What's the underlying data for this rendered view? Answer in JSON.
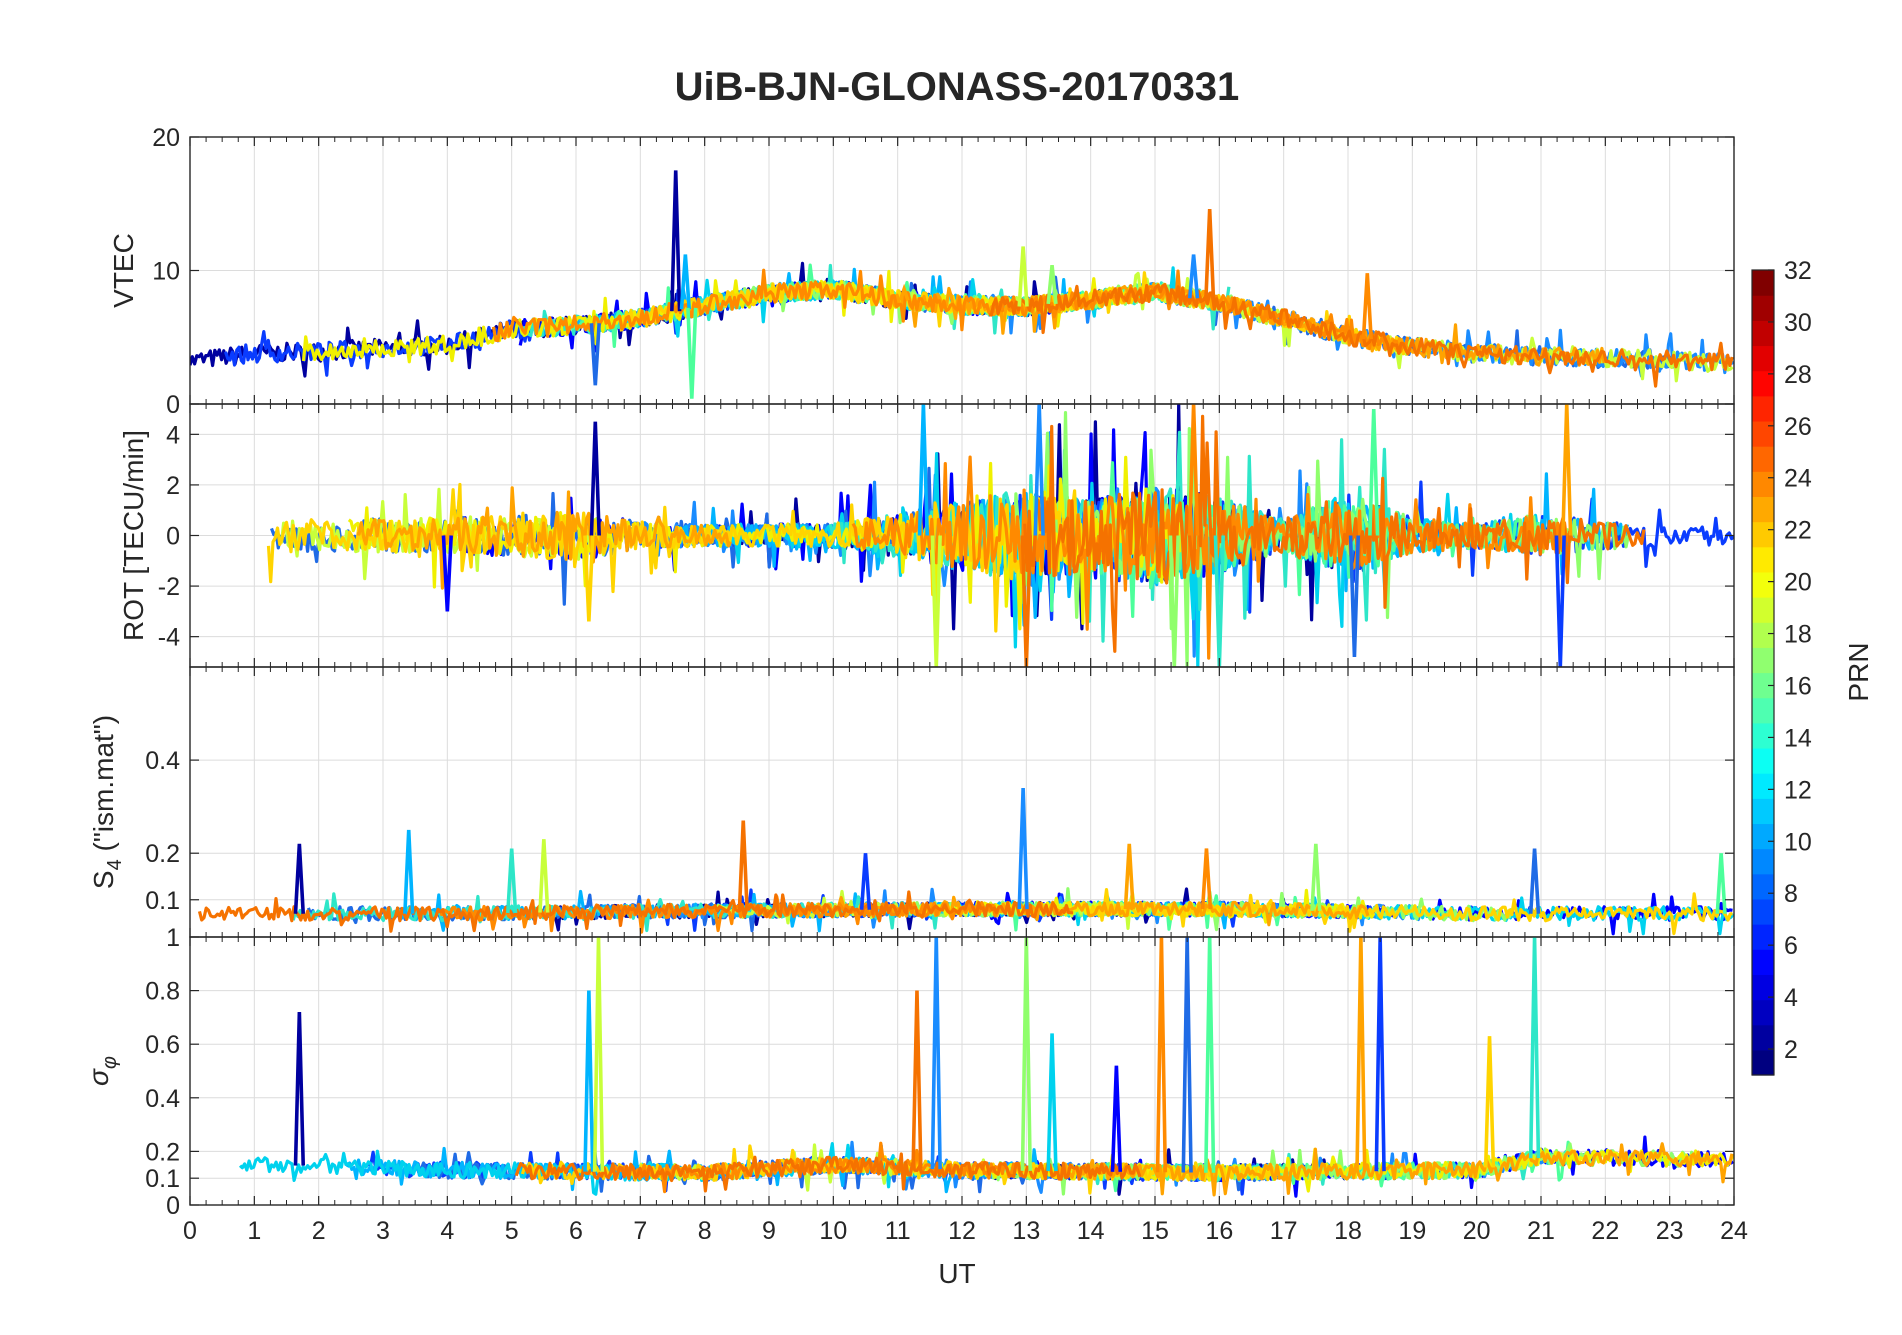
{
  "chart_data": {
    "type": "line",
    "title": "UiB-BJN-GLONASS-20170331",
    "xlabel": "UT",
    "xlim": [
      0,
      24
    ],
    "x_ticks": [
      "0",
      "1",
      "2",
      "3",
      "4",
      "5",
      "6",
      "7",
      "8",
      "9",
      "10",
      "11",
      "12",
      "13",
      "14",
      "15",
      "16",
      "17",
      "18",
      "19",
      "20",
      "21",
      "22",
      "23",
      "24"
    ],
    "grid": true,
    "series_count": 24,
    "panels": [
      {
        "id": "vtec",
        "ylabel": "VTEC",
        "ylim": [
          0,
          20
        ],
        "y_ticks": [
          "0",
          "10",
          "20"
        ],
        "baseline": [
          [
            0,
            3.2
          ],
          [
            1,
            3.8
          ],
          [
            2,
            3.9
          ],
          [
            3,
            4.2
          ],
          [
            4,
            4.4
          ],
          [
            5,
            5.6
          ],
          [
            6,
            5.9
          ],
          [
            7,
            6.4
          ],
          [
            8,
            7.4
          ],
          [
            9,
            8.3
          ],
          [
            10,
            8.6
          ],
          [
            11,
            7.8
          ],
          [
            12,
            7.4
          ],
          [
            13,
            7.3
          ],
          [
            14,
            7.8
          ],
          [
            15,
            8.4
          ],
          [
            16,
            7.6
          ],
          [
            17,
            6.4
          ],
          [
            18,
            5.1
          ],
          [
            19,
            4.3
          ],
          [
            20,
            3.8
          ],
          [
            21,
            3.6
          ],
          [
            22,
            3.5
          ],
          [
            23,
            3.3
          ],
          [
            24,
            3.0
          ]
        ],
        "spread": 1.4,
        "spikes": [
          [
            7.55,
            17.5
          ],
          [
            7.7,
            11.2
          ],
          [
            12.95,
            11.8
          ],
          [
            15.85,
            14.6
          ],
          [
            15.6,
            11.2
          ],
          [
            13.4,
            10.4
          ],
          [
            18.3,
            9.8
          ],
          [
            6.3,
            1.4
          ],
          [
            7.8,
            0.4
          ],
          [
            11.1,
            8.6
          ]
        ]
      },
      {
        "id": "rot",
        "ylabel": "ROT [TECU/min]",
        "ylim": [
          -5.2,
          5.2
        ],
        "y_ticks": [
          "-4",
          "-2",
          "0",
          "2",
          "4"
        ],
        "baseline": [
          [
            0,
            0
          ],
          [
            24,
            0
          ]
        ],
        "activity": [
          [
            0,
            0.9
          ],
          [
            2,
            0.9
          ],
          [
            4,
            1.0
          ],
          [
            6,
            1.4
          ],
          [
            7,
            0.8
          ],
          [
            8,
            0.6
          ],
          [
            10,
            0.7
          ],
          [
            11,
            1.2
          ],
          [
            12,
            2.0
          ],
          [
            13,
            2.6
          ],
          [
            14,
            2.0
          ],
          [
            15,
            2.8
          ],
          [
            16,
            2.2
          ],
          [
            17,
            0.9
          ],
          [
            18,
            2.4
          ],
          [
            19,
            1.0
          ],
          [
            20,
            0.7
          ],
          [
            21,
            1.2
          ],
          [
            22,
            0.8
          ],
          [
            23,
            0.6
          ],
          [
            24,
            0.5
          ]
        ],
        "spikes": [
          [
            6.3,
            4.5
          ],
          [
            11.4,
            5.2
          ],
          [
            11.6,
            -5.2
          ],
          [
            13.0,
            -5.2
          ],
          [
            13.2,
            5.2
          ],
          [
            15.3,
            -5.2
          ],
          [
            15.6,
            5.2
          ],
          [
            18.1,
            -4.8
          ],
          [
            18.4,
            5.0
          ],
          [
            21.4,
            5.2
          ],
          [
            21.3,
            -5.2
          ],
          [
            16.0,
            -5.2
          ],
          [
            6.2,
            -3.4
          ],
          [
            4.0,
            -3.0
          ]
        ]
      },
      {
        "id": "s4",
        "ylabel": "S4 (\"ism.mat\")",
        "ylabel_main": "S",
        "ylabel_sub": "4",
        "ylabel_rest": " (\"ism.mat\")",
        "ylim": [
          0.02,
          0.6
        ],
        "y_ticks": [
          "0.1",
          "0.2",
          "0.4"
        ],
        "y_tick_values": [
          0.1,
          0.2,
          0.4
        ],
        "baseline": [
          [
            0,
            0.07
          ],
          [
            4,
            0.07
          ],
          [
            7,
            0.075
          ],
          [
            12,
            0.08
          ],
          [
            16,
            0.08
          ],
          [
            20,
            0.07
          ],
          [
            24,
            0.07
          ]
        ],
        "spread": 0.03,
        "spikes": [
          [
            1.7,
            0.22
          ],
          [
            3.4,
            0.25
          ],
          [
            5.5,
            0.23
          ],
          [
            8.6,
            0.27
          ],
          [
            12.95,
            0.34
          ],
          [
            17.5,
            0.22
          ],
          [
            15.8,
            0.21
          ],
          [
            20.9,
            0.21
          ],
          [
            23.8,
            0.2
          ],
          [
            14.6,
            0.22
          ],
          [
            10.5,
            0.2
          ],
          [
            5.0,
            0.21
          ]
        ]
      },
      {
        "id": "sigma",
        "ylabel": "σφ",
        "ylabel_main": "σ",
        "ylabel_sub": "φ",
        "ylim": [
          0,
          1
        ],
        "y_ticks": [
          "0",
          "0.1",
          "0.2",
          "0.4",
          "0.6",
          "0.8",
          "1"
        ],
        "y_tick_values": [
          0,
          0.1,
          0.2,
          0.4,
          0.6,
          0.8,
          1
        ],
        "baseline": [
          [
            0,
            0.16
          ],
          [
            4,
            0.13
          ],
          [
            8,
            0.12
          ],
          [
            10,
            0.15
          ],
          [
            12,
            0.13
          ],
          [
            16,
            0.12
          ],
          [
            20,
            0.13
          ],
          [
            21,
            0.18
          ],
          [
            24,
            0.17
          ]
        ],
        "spread": 0.06,
        "spikes": [
          [
            1.7,
            0.72
          ],
          [
            6.2,
            0.8
          ],
          [
            6.35,
            1.0
          ],
          [
            11.3,
            0.8
          ],
          [
            11.6,
            1.0
          ],
          [
            13.0,
            1.0
          ],
          [
            15.1,
            1.0
          ],
          [
            15.5,
            1.0
          ],
          [
            15.85,
            1.0
          ],
          [
            18.2,
            1.0
          ],
          [
            18.5,
            1.0
          ],
          [
            20.9,
            1.0
          ],
          [
            20.2,
            0.63
          ],
          [
            14.4,
            0.52
          ],
          [
            13.4,
            0.64
          ]
        ]
      }
    ],
    "colorbar": {
      "label": "PRN",
      "range": [
        1,
        32
      ],
      "ticks": [
        "2",
        "4",
        "6",
        "8",
        "10",
        "12",
        "14",
        "16",
        "18",
        "20",
        "22",
        "24",
        "26",
        "28",
        "30",
        "32"
      ],
      "tick_values": [
        2,
        4,
        6,
        8,
        10,
        12,
        14,
        16,
        18,
        20,
        22,
        24,
        26,
        28,
        30,
        32
      ],
      "colormap": "jet"
    },
    "series_colors": [
      "#00009f",
      "#0000ff",
      "#0a3cff",
      "#1f6be6",
      "#1a8cff",
      "#00b4ff",
      "#00d2ee",
      "#2ee6c8",
      "#4cff9b",
      "#8fff6b",
      "#c8ff3a",
      "#f0f000",
      "#ffd400",
      "#ffa300",
      "#ff8a00",
      "#f57200"
    ]
  }
}
